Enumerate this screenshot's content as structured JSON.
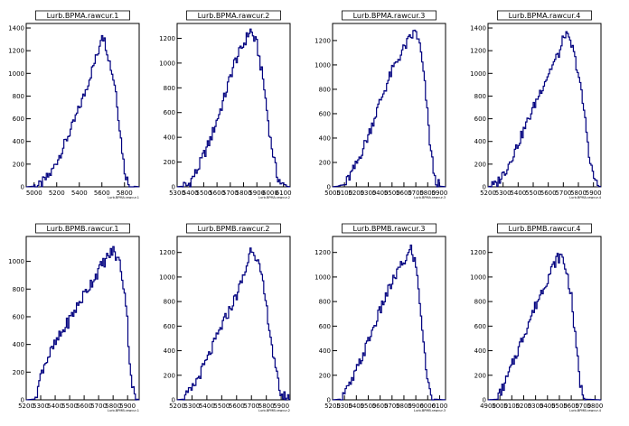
{
  "chart_data": [
    {
      "type": "line",
      "title": "Lurb.BPMA.rawcur.1",
      "xlabel": "Lurb.BPMA.rawcur.1",
      "x_ticks": [
        "5000",
        "5200",
        "5400",
        "5600",
        "5800"
      ],
      "y_ticks": [
        "0",
        "200",
        "400",
        "600",
        "800",
        "1000",
        "1200",
        "1400"
      ],
      "xlim": [
        4930,
        5930
      ],
      "ylim": [
        0,
        1440
      ],
      "points": [
        [
          4930,
          0
        ],
        [
          5050,
          10
        ],
        [
          5150,
          120
        ],
        [
          5250,
          330
        ],
        [
          5350,
          560
        ],
        [
          5450,
          830
        ],
        [
          5520,
          1050
        ],
        [
          5570,
          1200
        ],
        [
          5600,
          1370
        ],
        [
          5640,
          1230
        ],
        [
          5680,
          1050
        ],
        [
          5720,
          880
        ],
        [
          5760,
          500
        ],
        [
          5800,
          150
        ],
        [
          5840,
          10
        ],
        [
          5930,
          0
        ]
      ]
    },
    {
      "type": "line",
      "title": "Lurb.BPMA.rawcur.2",
      "xlabel": "Lurb.BPMA.rawcur.2",
      "x_ticks": [
        "5300",
        "5400",
        "5500",
        "5600",
        "5700",
        "5800",
        "5900",
        "6000",
        "6100"
      ],
      "y_ticks": [
        "0",
        "200",
        "400",
        "600",
        "800",
        "1000",
        "1200"
      ],
      "xlim": [
        5300,
        6150
      ],
      "ylim": [
        0,
        1320
      ],
      "points": [
        [
          5300,
          0
        ],
        [
          5380,
          10
        ],
        [
          5450,
          130
        ],
        [
          5550,
          380
        ],
        [
          5650,
          700
        ],
        [
          5730,
          1000
        ],
        [
          5800,
          1150
        ],
        [
          5850,
          1270
        ],
        [
          5900,
          1150
        ],
        [
          5950,
          850
        ],
        [
          6000,
          400
        ],
        [
          6050,
          100
        ],
        [
          6090,
          10
        ],
        [
          6150,
          0
        ]
      ]
    },
    {
      "type": "line",
      "title": "Lurb.BPMA.rawcur.3",
      "xlabel": "Lurb.BPMA.rawcur.3",
      "x_ticks": [
        "5000",
        "5100",
        "5200",
        "5300",
        "5400",
        "5500",
        "5600",
        "5700",
        "5800",
        "5900"
      ],
      "y_ticks": [
        "0",
        "200",
        "400",
        "600",
        "800",
        "1000",
        "1200"
      ],
      "xlim": [
        5000,
        5950
      ],
      "ylim": [
        0,
        1340
      ],
      "points": [
        [
          5000,
          0
        ],
        [
          5100,
          10
        ],
        [
          5200,
          180
        ],
        [
          5300,
          420
        ],
        [
          5400,
          700
        ],
        [
          5500,
          950
        ],
        [
          5580,
          1100
        ],
        [
          5640,
          1200
        ],
        [
          5700,
          1280
        ],
        [
          5740,
          1130
        ],
        [
          5780,
          800
        ],
        [
          5820,
          350
        ],
        [
          5860,
          60
        ],
        [
          5900,
          5
        ],
        [
          5950,
          0
        ]
      ]
    },
    {
      "type": "line",
      "title": "Lurb.BPMA.rawcur.4",
      "xlabel": "Lurb.BPMA.rawcur.4",
      "x_ticks": [
        "5200",
        "5300",
        "5400",
        "5500",
        "5600",
        "5700",
        "5800",
        "5900"
      ],
      "y_ticks": [
        "0",
        "200",
        "400",
        "600",
        "800",
        "1000",
        "1200",
        "1400"
      ],
      "xlim": [
        5200,
        5950
      ],
      "ylim": [
        0,
        1440
      ],
      "points": [
        [
          5200,
          0
        ],
        [
          5250,
          15
        ],
        [
          5320,
          150
        ],
        [
          5400,
          380
        ],
        [
          5480,
          630
        ],
        [
          5560,
          880
        ],
        [
          5620,
          1050
        ],
        [
          5680,
          1200
        ],
        [
          5710,
          1360
        ],
        [
          5760,
          1230
        ],
        [
          5800,
          1000
        ],
        [
          5840,
          650
        ],
        [
          5880,
          200
        ],
        [
          5920,
          20
        ],
        [
          5950,
          0
        ]
      ]
    },
    {
      "type": "line",
      "title": "Lurb.BPMB.rawcur.1",
      "xlabel": "Lurb.BPMB.rawcur.1",
      "x_ticks": [
        "5200",
        "5300",
        "5400",
        "5500",
        "5600",
        "5700",
        "5800",
        "5900"
      ],
      "y_ticks": [
        "0",
        "200",
        "400",
        "600",
        "800",
        "1000"
      ],
      "xlim": [
        5200,
        5980
      ],
      "ylim": [
        0,
        1180
      ],
      "points": [
        [
          5200,
          0
        ],
        [
          5260,
          5
        ],
        [
          5320,
          250
        ],
        [
          5400,
          400
        ],
        [
          5500,
          580
        ],
        [
          5600,
          760
        ],
        [
          5680,
          900
        ],
        [
          5740,
          1000
        ],
        [
          5800,
          1080
        ],
        [
          5850,
          980
        ],
        [
          5890,
          700
        ],
        [
          5920,
          200
        ],
        [
          5950,
          10
        ],
        [
          5980,
          0
        ]
      ]
    },
    {
      "type": "line",
      "title": "Lurb.BPMB.rawcur.2",
      "xlabel": "Lurb.BPMB.rawcur.2",
      "x_ticks": [
        "5200",
        "5300",
        "5400",
        "5500",
        "5600",
        "5700",
        "5800",
        "5900"
      ],
      "y_ticks": [
        "0",
        "200",
        "400",
        "600",
        "800",
        "1000",
        "1200"
      ],
      "xlim": [
        5200,
        5960
      ],
      "ylim": [
        0,
        1330
      ],
      "points": [
        [
          5200,
          0
        ],
        [
          5240,
          5
        ],
        [
          5300,
          80
        ],
        [
          5400,
          320
        ],
        [
          5500,
          600
        ],
        [
          5600,
          850
        ],
        [
          5660,
          1050
        ],
        [
          5700,
          1250
        ],
        [
          5740,
          1150
        ],
        [
          5780,
          920
        ],
        [
          5820,
          600
        ],
        [
          5860,
          250
        ],
        [
          5900,
          40
        ],
        [
          5960,
          0
        ]
      ]
    },
    {
      "type": "line",
      "title": "Lurb.BPMB.rawcur.3",
      "xlabel": "Lurb.BPMB.rawcur.3",
      "x_ticks": [
        "5200",
        "5300",
        "5400",
        "5500",
        "5600",
        "5700",
        "5800",
        "5900",
        "6000",
        "6100"
      ],
      "y_ticks": [
        "0",
        "200",
        "400",
        "600",
        "800",
        "1000",
        "1200"
      ],
      "xlim": [
        5200,
        6150
      ],
      "ylim": [
        0,
        1330
      ],
      "points": [
        [
          5200,
          0
        ],
        [
          5260,
          5
        ],
        [
          5350,
          120
        ],
        [
          5450,
          350
        ],
        [
          5550,
          600
        ],
        [
          5650,
          850
        ],
        [
          5750,
          1050
        ],
        [
          5820,
          1150
        ],
        [
          5860,
          1230
        ],
        [
          5900,
          1100
        ],
        [
          5940,
          750
        ],
        [
          5980,
          300
        ],
        [
          6020,
          50
        ],
        [
          6060,
          5
        ],
        [
          6150,
          0
        ]
      ]
    },
    {
      "type": "line",
      "title": "Lurb.BPMB.rawcur.4",
      "xlabel": "Lurb.BPMB.rawcur.4",
      "x_ticks": [
        "4900",
        "5000",
        "5100",
        "5200",
        "5300",
        "5400",
        "5500",
        "5600",
        "5700",
        "5800"
      ],
      "y_ticks": [
        "0",
        "200",
        "400",
        "600",
        "800",
        "1000",
        "1200"
      ],
      "xlim": [
        4900,
        5850
      ],
      "ylim": [
        0,
        1330
      ],
      "points": [
        [
          4900,
          0
        ],
        [
          4980,
          5
        ],
        [
          5050,
          150
        ],
        [
          5150,
          400
        ],
        [
          5250,
          650
        ],
        [
          5350,
          880
        ],
        [
          5430,
          1050
        ],
        [
          5480,
          1150
        ],
        [
          5520,
          1170
        ],
        [
          5560,
          1050
        ],
        [
          5600,
          850
        ],
        [
          5640,
          450
        ],
        [
          5680,
          100
        ],
        [
          5720,
          5
        ],
        [
          5850,
          0
        ]
      ]
    }
  ]
}
